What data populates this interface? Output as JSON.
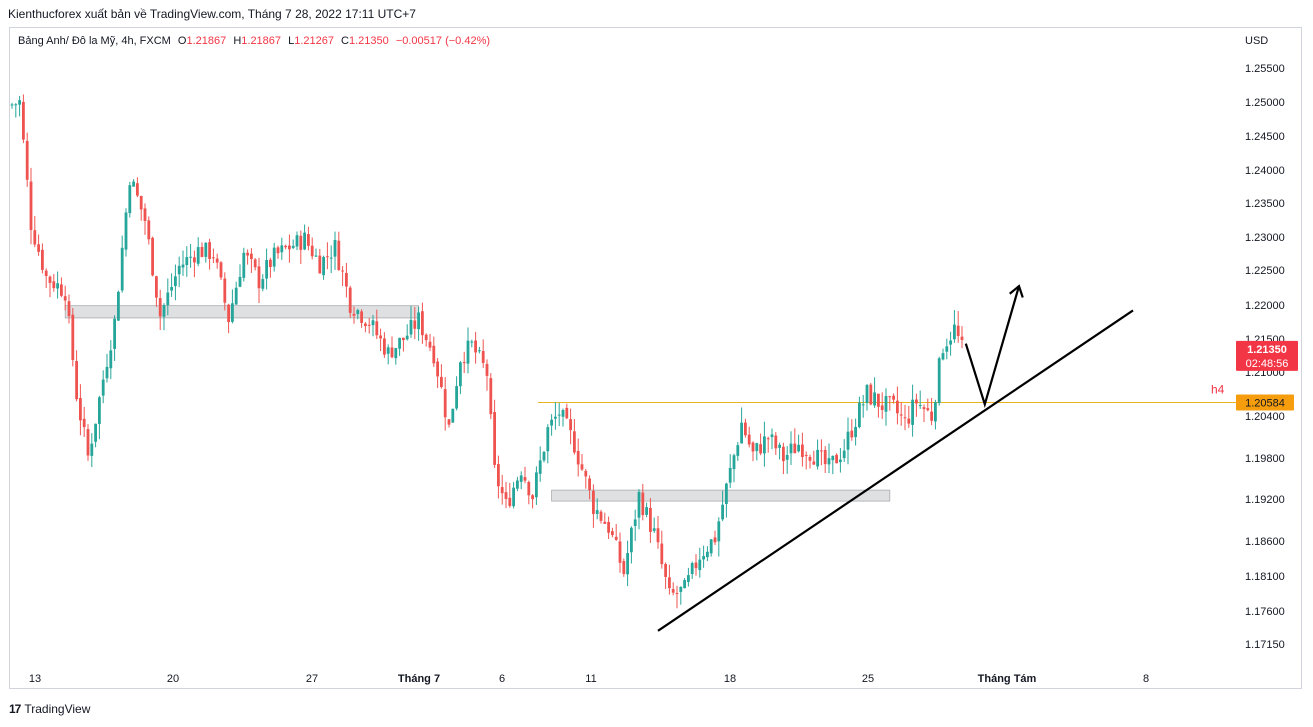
{
  "header": {
    "published": "Kienthucforex xuất bản về TradingView.com, Tháng 7 28, 2022 17:11 UTC+7"
  },
  "legend": {
    "symbol": "Bảng Anh/ Đô la Mỹ, 4h, FXCM",
    "o_label": "O",
    "o_value": "1.21867",
    "h_label": "H",
    "h_value": "1.21867",
    "l_label": "L",
    "l_value": "1.21267",
    "c_label": "C",
    "c_value": "1.21350",
    "change": "−0.00517 (−0.42%)"
  },
  "currency": "USD",
  "footer": {
    "logo": "17",
    "brand": "TradingView"
  },
  "colors": {
    "up": "#26a69a",
    "down": "#ef5350",
    "level": "#e6b422",
    "label_orange": "#f59d0c",
    "last_price_red": "#f23645",
    "zone": "#d9dadd"
  },
  "chart_data": {
    "type": "candlestick",
    "title": "Bảng Anh/ Đô la Mỹ, 4h, FXCM",
    "y_ticks": [
      1.255,
      1.25,
      1.245,
      1.24,
      1.235,
      1.23,
      1.225,
      1.22,
      1.215,
      1.21,
      1.204,
      1.198,
      1.192,
      1.186,
      1.181,
      1.176,
      1.1715
    ],
    "y_tick_labels": [
      "1.25500",
      "1.25000",
      "1.24500",
      "1.24000",
      "1.23500",
      "1.23000",
      "1.22500",
      "1.22000",
      "1.21500",
      "1.21000",
      "1.20400",
      "1.19800",
      "1.19200",
      "1.18600",
      "1.18100",
      "1.17600",
      "1.17150"
    ],
    "x_tick_labels": [
      "13",
      "20",
      "27",
      "Tháng 7",
      "6",
      "11",
      "18",
      "25",
      "Tháng Tám",
      "8"
    ],
    "last_price": {
      "value": "1.21350",
      "countdown": "02:48:56"
    },
    "level": {
      "value": "1.20584",
      "name": "h4"
    },
    "zones": [
      {
        "from_bar": 14,
        "to_bar": 107,
        "top": 1.2199,
        "bottom": 1.2181
      },
      {
        "from_bar": 142,
        "to_bar": 231,
        "top": 1.1933,
        "bottom": 1.1917
      }
    ],
    "trendline": {
      "from_bar": 170,
      "from_price": 1.1733,
      "to_bar": 295,
      "to_price": 1.2192
    },
    "arrow_path": [
      {
        "bar": 251,
        "price": 1.2143
      },
      {
        "bar": 256,
        "price": 1.2056
      },
      {
        "bar": 265,
        "price": 1.2227
      }
    ],
    "anchors": [
      [
        0,
        1.2495
      ],
      [
        3,
        1.25
      ],
      [
        6,
        1.232
      ],
      [
        10,
        1.224
      ],
      [
        15,
        1.222
      ],
      [
        18,
        1.207
      ],
      [
        21,
        1.1982
      ],
      [
        24,
        1.2063
      ],
      [
        28,
        1.2175
      ],
      [
        32,
        1.239
      ],
      [
        36,
        1.2325
      ],
      [
        40,
        1.2185
      ],
      [
        45,
        1.2255
      ],
      [
        50,
        1.228
      ],
      [
        54,
        1.2275
      ],
      [
        58,
        1.218
      ],
      [
        62,
        1.2275
      ],
      [
        66,
        1.2235
      ],
      [
        70,
        1.227
      ],
      [
        74,
        1.2285
      ],
      [
        78,
        1.2297
      ],
      [
        82,
        1.226
      ],
      [
        86,
        1.2285
      ],
      [
        90,
        1.2203
      ],
      [
        95,
        1.2175
      ],
      [
        100,
        1.2129
      ],
      [
        104,
        1.215
      ],
      [
        108,
        1.2178
      ],
      [
        112,
        1.2128
      ],
      [
        116,
        1.2023
      ],
      [
        119,
        1.2122
      ],
      [
        122,
        1.214
      ],
      [
        126,
        1.2098
      ],
      [
        128,
        1.196
      ],
      [
        131,
        1.191
      ],
      [
        135,
        1.1965
      ],
      [
        138,
        1.1925
      ],
      [
        142,
        1.202
      ],
      [
        145,
        1.2045
      ],
      [
        149,
        1.2
      ],
      [
        154,
        1.191
      ],
      [
        158,
        1.188
      ],
      [
        162,
        1.1815
      ],
      [
        166,
        1.1925
      ],
      [
        170,
        1.187
      ],
      [
        174,
        1.178
      ],
      [
        178,
        1.179
      ],
      [
        182,
        1.184
      ],
      [
        186,
        1.1865
      ],
      [
        190,
        1.196
      ],
      [
        193,
        1.203
      ],
      [
        196,
        1.1985
      ],
      [
        200,
        1.201
      ],
      [
        204,
        1.198
      ],
      [
        208,
        1.2
      ],
      [
        212,
        1.1985
      ],
      [
        216,
        1.1965
      ],
      [
        220,
        1.1995
      ],
      [
        223,
        1.2035
      ],
      [
        226,
        1.207
      ],
      [
        230,
        1.2055
      ],
      [
        233,
        1.205
      ],
      [
        236,
        1.203
      ],
      [
        239,
        1.206
      ],
      [
        243,
        1.204
      ],
      [
        246,
        1.214
      ],
      [
        249,
        1.2165
      ],
      [
        251,
        1.2135
      ]
    ]
  }
}
